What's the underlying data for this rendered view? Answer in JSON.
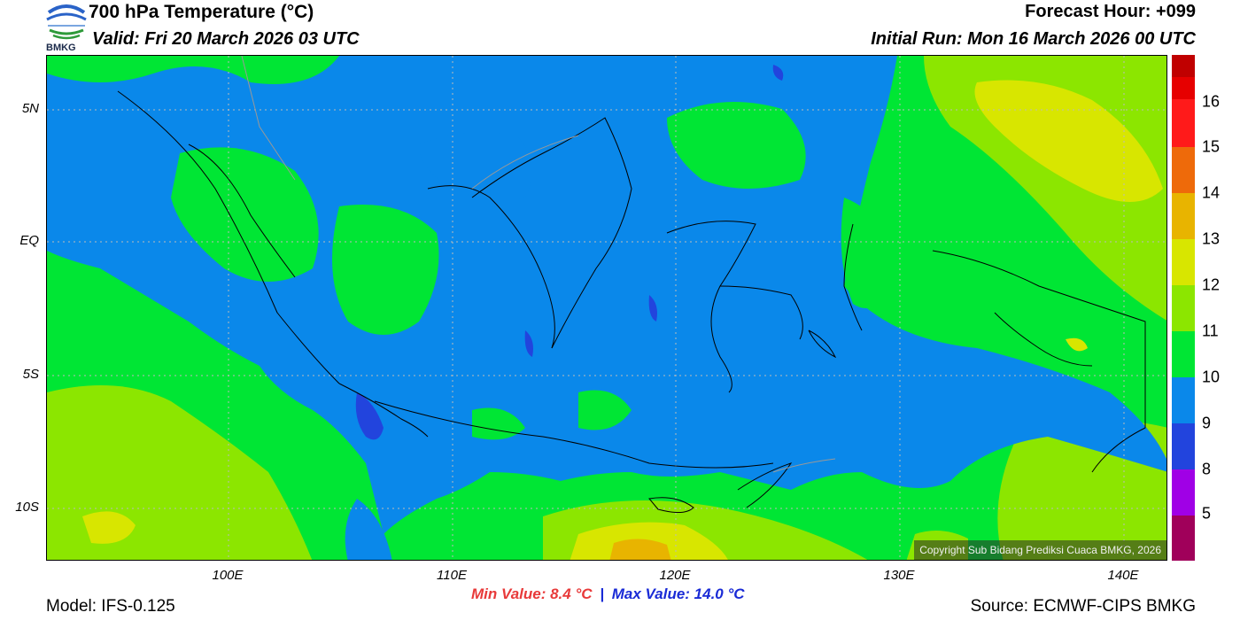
{
  "header": {
    "title": "700 hPa Temperature (°C)",
    "valid": "Valid: Fri 20 March 2026 03 UTC",
    "forecast_hour": "Forecast Hour: +099",
    "initial_run": "Initial Run: Mon 16 March 2026 00 UTC"
  },
  "logo": {
    "text": "BMKG"
  },
  "map": {
    "lat_labels": [
      "5N",
      "EQ",
      "5S",
      "10S"
    ],
    "lon_labels": [
      "100E",
      "110E",
      "120E",
      "130E",
      "140E"
    ],
    "copyright": "Copyright Sub Bidang Prediksi Cuaca BMKG, 2026"
  },
  "colorbar": {
    "labels": [
      "16",
      "15",
      "14",
      "13",
      "12",
      "11",
      "10",
      "9",
      "8",
      "5"
    ],
    "colors": [
      "#c00000",
      "#e60000",
      "#ff1a1a",
      "#ee6a0a",
      "#e8b400",
      "#d8e600",
      "#8ce600",
      "#00e634",
      "#0a88ea",
      "#2244dd",
      "#a000e6",
      "#a0005a"
    ]
  },
  "stats": {
    "min": "Min Value: 8.4 °C",
    "separator": "|",
    "max": "Max Value: 14.0 °C"
  },
  "footer": {
    "model": "Model: IFS-0.125",
    "source": "Source: ECMWF-CIPS BMKG"
  }
}
